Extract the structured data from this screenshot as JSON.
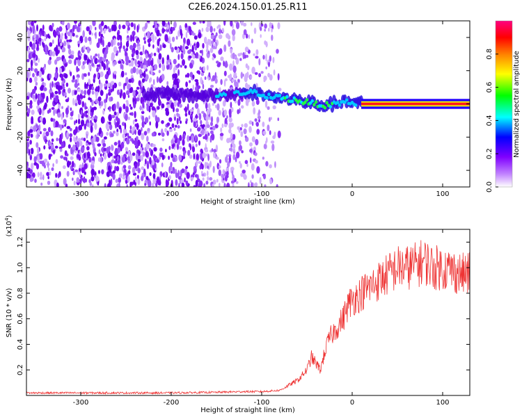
{
  "title": "C2E6.2024.150.01.25.R11",
  "chart_data": [
    {
      "type": "heatmap",
      "xlabel": "Height of straight line (km)",
      "ylabel": "Frequency (Hz)",
      "xlim": [
        -360,
        130
      ],
      "ylim": [
        -50,
        50
      ],
      "xticks": [
        -300,
        -200,
        -100,
        0,
        100
      ],
      "xtick_labels": [
        "-300",
        "-200",
        "-100",
        "0",
        "100"
      ],
      "yticks": [
        -40,
        -20,
        0,
        20,
        40
      ],
      "ytick_labels": [
        "-40",
        "-20",
        "0",
        "20",
        "40"
      ],
      "colorbar": {
        "label": "Normalized spectral amplitude",
        "range": [
          0,
          1
        ],
        "ticks": [
          0,
          0.2,
          0.4,
          0.6,
          0.8
        ],
        "tick_labels": [
          "0.0",
          "0.2",
          "0.4",
          "0.6",
          "0.8"
        ],
        "colors": [
          "#ffffff",
          "#8000ff",
          "#0000ff",
          "#00ffff",
          "#00ff00",
          "#ffff00",
          "#ff8000",
          "#ff0000",
          "#ff0080"
        ]
      },
      "signal_trace": {
        "x": [
          -230,
          -210,
          -190,
          -170,
          -150,
          -130,
          -110,
          -100,
          -90,
          -80,
          -70,
          -60,
          -50,
          -40,
          -30,
          -20,
          -10,
          0,
          10,
          50,
          100,
          130
        ],
        "y": [
          5,
          6,
          6,
          5,
          5,
          6,
          7,
          6,
          4,
          4,
          3,
          2,
          1,
          0,
          -1,
          0,
          1,
          1,
          0,
          0,
          0,
          0
        ]
      },
      "noise_extent_x": [
        -360,
        -80
      ],
      "grid": false
    },
    {
      "type": "line",
      "xlabel": "Height of straight line (km)",
      "ylabel": "SNR (10 * v/v)",
      "scale_label": "(x10^4)",
      "xlim": [
        -360,
        130
      ],
      "ylim": [
        0,
        1.3
      ],
      "xticks": [
        -300,
        -200,
        -100,
        0,
        100
      ],
      "xtick_labels": [
        "-300",
        "-200",
        "-100",
        "0",
        "100"
      ],
      "yticks": [
        0.2,
        0.4,
        0.6,
        0.8,
        1.0,
        1.2
      ],
      "ytick_labels": [
        "0.2",
        "0.4",
        "0.6",
        "0.8",
        "1.0",
        "1.2"
      ],
      "series": [
        {
          "color": "#ee3333",
          "x": [
            -360,
            -300,
            -250,
            -200,
            -150,
            -120,
            -100,
            -80,
            -70,
            -60,
            -50,
            -45,
            -40,
            -35,
            -30,
            -25,
            -20,
            -15,
            -10,
            -5,
            0,
            10,
            20,
            30,
            40,
            50,
            60,
            70,
            80,
            90,
            100,
            110,
            120,
            130
          ],
          "y": [
            0.02,
            0.02,
            0.02,
            0.02,
            0.025,
            0.03,
            0.03,
            0.04,
            0.08,
            0.12,
            0.2,
            0.3,
            0.25,
            0.2,
            0.35,
            0.45,
            0.5,
            0.55,
            0.6,
            0.7,
            0.75,
            0.8,
            0.85,
            0.9,
            0.95,
            1.0,
            1.0,
            1.02,
            1.05,
            1.0,
            1.0,
            0.98,
            0.95,
            0.95
          ]
        }
      ],
      "grid": false
    }
  ]
}
